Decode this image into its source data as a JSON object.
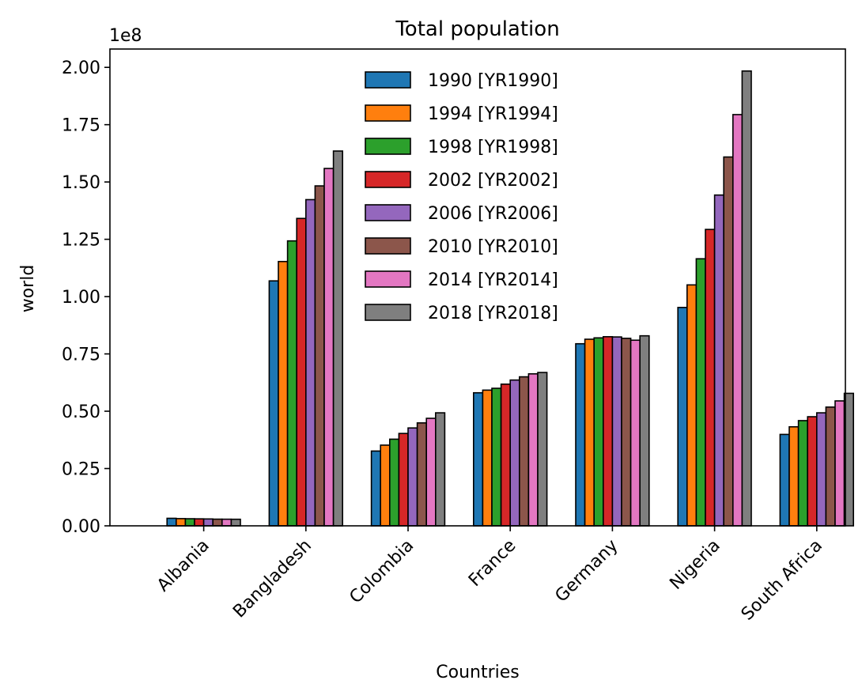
{
  "chart_data": {
    "type": "bar",
    "title": "Total population",
    "xlabel": "Countries",
    "ylabel": "world",
    "y_offset_label": "1e8",
    "ylim": [
      0,
      2.08
    ],
    "y_ticks": [
      0,
      0.25,
      0.5,
      0.75,
      1.0,
      1.25,
      1.5,
      1.75,
      2.0
    ],
    "y_tick_labels": [
      "0.00",
      "0.25",
      "0.50",
      "0.75",
      "1.00",
      "1.25",
      "1.50",
      "1.75",
      "2.00"
    ],
    "y_scale_factor": 100000000,
    "legend_position": "top-center",
    "grid": false,
    "categories": [
      "Albania",
      "Bangladesh",
      "Colombia",
      "France",
      "Germany",
      "Nigeria",
      "South Africa"
    ],
    "series": [
      {
        "name": "1990 [YR1990]",
        "color": "#1f77b4",
        "values": [
          3286542,
          106854000,
          32625000,
          58044000,
          79433000,
          95270000,
          39878000
        ]
      },
      {
        "name": "1994 [YR1994]",
        "color": "#ff7f0e",
        "values": [
          3150000,
          115300000,
          35200000,
          59200000,
          81400000,
          105100000,
          43200000
        ]
      },
      {
        "name": "1998 [YR1998]",
        "color": "#2ca02c",
        "values": [
          3100000,
          124300000,
          37800000,
          60000000,
          82000000,
          116500000,
          45900000
        ]
      },
      {
        "name": "2002 [YR2002]",
        "color": "#d62728",
        "values": [
          3050000,
          134100000,
          40300000,
          61800000,
          82500000,
          129300000,
          47600000
        ]
      },
      {
        "name": "2006 [YR2006]",
        "color": "#9467bd",
        "values": [
          3000000,
          142300000,
          42700000,
          63600000,
          82400000,
          144300000,
          49300000
        ]
      },
      {
        "name": "2010 [YR2010]",
        "color": "#8c564b",
        "values": [
          2913000,
          148300000,
          44900000,
          65000000,
          81800000,
          160900000,
          51800000
        ]
      },
      {
        "name": "2014 [YR2014]",
        "color": "#e377c2",
        "values": [
          2889000,
          155900000,
          46900000,
          66300000,
          80980000,
          179400000,
          54500000
        ]
      },
      {
        "name": "2018 [YR2018]",
        "color": "#7f7f7f",
        "values": [
          2866000,
          163500000,
          49300000,
          66900000,
          82900000,
          198400000,
          57800000
        ]
      }
    ]
  }
}
